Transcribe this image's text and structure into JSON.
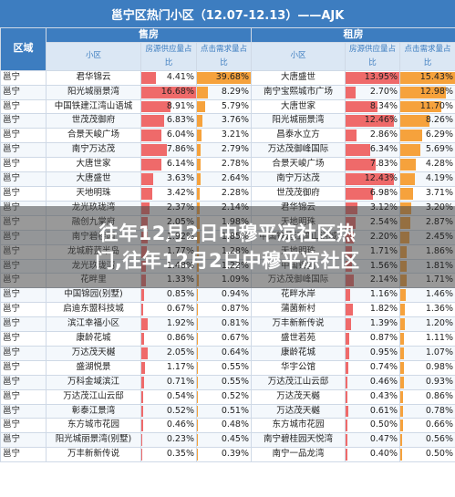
{
  "title": "邕宁区热门小区（12.07-12.13）——AJK",
  "headers": {
    "district": "区域",
    "sale": "售房",
    "rent": "租房",
    "community": "小区",
    "supply_share": "房源供应量占比",
    "demand_share": "点击需求量占比"
  },
  "overlay_title": [
    "往年12月2日中穆平凉社区热",
    "门,往年12月2日中穆平凉社区"
  ],
  "rows": [
    {
      "district": "邕宁",
      "sale_name": "君华锦云",
      "sale_supply": "4.41%",
      "sale_demand": "39.68%",
      "rent_name": "大唐盛世",
      "rent_supply": "13.95%",
      "rent_demand": "15.43%"
    },
    {
      "district": "邕宁",
      "sale_name": "阳光城丽景湾",
      "sale_supply": "16.68%",
      "sale_demand": "8.29%",
      "rent_name": "南宁宝熙城市广场",
      "rent_supply": "2.70%",
      "rent_demand": "12.98%"
    },
    {
      "district": "邕宁",
      "sale_name": "中国铁建江湾山语城",
      "sale_supply": "8.91%",
      "sale_demand": "5.79%",
      "rent_name": "大唐世家",
      "rent_supply": "8.34%",
      "rent_demand": "11.70%"
    },
    {
      "district": "邕宁",
      "sale_name": "世茂茂御府",
      "sale_supply": "6.83%",
      "sale_demand": "3.76%",
      "rent_name": "阳光城丽景湾",
      "rent_supply": "12.46%",
      "rent_demand": "8.26%"
    },
    {
      "district": "邕宁",
      "sale_name": "合景天峻广场",
      "sale_supply": "6.04%",
      "sale_demand": "3.21%",
      "rent_name": "昌泰水立方",
      "rent_supply": "2.86%",
      "rent_demand": "6.29%"
    },
    {
      "district": "邕宁",
      "sale_name": "南宁万达茂",
      "sale_supply": "7.86%",
      "sale_demand": "2.79%",
      "rent_name": "万达茂御峰国际",
      "rent_supply": "6.34%",
      "rent_demand": "5.69%"
    },
    {
      "district": "邕宁",
      "sale_name": "大唐世家",
      "sale_supply": "6.14%",
      "sale_demand": "2.78%",
      "rent_name": "合景天峻广场",
      "rent_supply": "7.83%",
      "rent_demand": "4.28%"
    },
    {
      "district": "邕宁",
      "sale_name": "大唐盛世",
      "sale_supply": "3.63%",
      "sale_demand": "2.64%",
      "rent_name": "南宁万达茂",
      "rent_supply": "12.43%",
      "rent_demand": "4.19%"
    },
    {
      "district": "邕宁",
      "sale_name": "天地明珠",
      "sale_supply": "3.42%",
      "sale_demand": "2.28%",
      "rent_name": "世茂茂御府",
      "rent_supply": "6.98%",
      "rent_demand": "3.71%"
    },
    {
      "district": "邕宁",
      "sale_name": "龙光玖珑湾",
      "sale_supply": "2.37%",
      "sale_demand": "2.14%",
      "rent_name": "君华锦云",
      "rent_supply": "3.12%",
      "rent_demand": "3.20%"
    },
    {
      "district": "邕宁",
      "sale_name": "融创九棠府",
      "sale_supply": "2.05%",
      "sale_demand": "1.98%",
      "rent_name": "天地明珠",
      "rent_supply": "2.54%",
      "rent_demand": "2.87%"
    },
    {
      "district": "邕宁",
      "sale_name": "南宁碧桂园",
      "sale_supply": "1.92%",
      "sale_demand": "1.85%",
      "rent_name": "中国铁建江湾山语城",
      "rent_supply": "2.20%",
      "rent_demand": "2.45%"
    },
    {
      "district": "邕宁",
      "sale_name": "龙城蔚蓝半岛",
      "sale_supply": "1.77%",
      "sale_demand": "1.28%",
      "rent_name": "天地明珠",
      "rent_supply": "1.71%",
      "rent_demand": "1.86%"
    },
    {
      "district": "邕宁",
      "sale_name": "龙光玖珑湾",
      "sale_supply": "1.48%",
      "sale_demand": "1.22%",
      "rent_name": "中国锦园",
      "rent_supply": "1.56%",
      "rent_demand": "1.81%"
    },
    {
      "district": "邕宁",
      "sale_name": "花畔里",
      "sale_supply": "1.33%",
      "sale_demand": "1.09%",
      "rent_name": "万达茂御峰国际",
      "rent_supply": "2.14%",
      "rent_demand": "1.71%"
    },
    {
      "district": "邕宁",
      "sale_name": "中国锦园(别墅)",
      "sale_supply": "0.85%",
      "sale_demand": "0.94%",
      "rent_name": "花畔水岸",
      "rent_supply": "1.16%",
      "rent_demand": "1.46%"
    },
    {
      "district": "邕宁",
      "sale_name": "启迪东盟科技城",
      "sale_supply": "0.67%",
      "sale_demand": "0.87%",
      "rent_name": "蒲菌新村",
      "rent_supply": "1.82%",
      "rent_demand": "1.36%"
    },
    {
      "district": "邕宁",
      "sale_name": "滨江幸福小区",
      "sale_supply": "1.92%",
      "sale_demand": "0.81%",
      "rent_name": "万丰新新传说",
      "rent_supply": "1.39%",
      "rent_demand": "1.20%"
    },
    {
      "district": "邕宁",
      "sale_name": "康龄花城",
      "sale_supply": "0.86%",
      "sale_demand": "0.67%",
      "rent_name": "盛世若苑",
      "rent_supply": "0.87%",
      "rent_demand": "1.11%"
    },
    {
      "district": "邕宁",
      "sale_name": "万达茂天樾",
      "sale_supply": "2.05%",
      "sale_demand": "0.64%",
      "rent_name": "康龄花城",
      "rent_supply": "0.95%",
      "rent_demand": "1.07%"
    },
    {
      "district": "邕宁",
      "sale_name": "盛湖悦景",
      "sale_supply": "1.17%",
      "sale_demand": "0.55%",
      "rent_name": "华宇公馆",
      "rent_supply": "0.74%",
      "rent_demand": "0.98%"
    },
    {
      "district": "邕宁",
      "sale_name": "万科金域滨江",
      "sale_supply": "0.71%",
      "sale_demand": "0.55%",
      "rent_name": "万达茂江山云邸",
      "rent_supply": "0.46%",
      "rent_demand": "0.93%"
    },
    {
      "district": "邕宁",
      "sale_name": "万达茂江山云邸",
      "sale_supply": "0.54%",
      "sale_demand": "0.52%",
      "rent_name": "万达茂天樾",
      "rent_supply": "0.43%",
      "rent_demand": "0.86%"
    },
    {
      "district": "邕宁",
      "sale_name": "彰泰江景湾",
      "sale_supply": "0.52%",
      "sale_demand": "0.51%",
      "rent_name": "万达茂天樾",
      "rent_supply": "0.61%",
      "rent_demand": "0.78%"
    },
    {
      "district": "邕宁",
      "sale_name": "东方城市花园",
      "sale_supply": "0.46%",
      "sale_demand": "0.48%",
      "rent_name": "东方城市花园",
      "rent_supply": "0.50%",
      "rent_demand": "0.66%"
    },
    {
      "district": "邕宁",
      "sale_name": "阳光城丽景湾(别墅)",
      "sale_supply": "0.23%",
      "sale_demand": "0.45%",
      "rent_name": "南宁碧桂园天悦湾",
      "rent_supply": "0.47%",
      "rent_demand": "0.56%"
    },
    {
      "district": "邕宁",
      "sale_name": "万丰新新传说",
      "sale_supply": "0.35%",
      "sale_demand": "0.39%",
      "rent_name": "南宁一品龙湾",
      "rent_supply": "0.40%",
      "rent_demand": "0.50%"
    }
  ]
}
